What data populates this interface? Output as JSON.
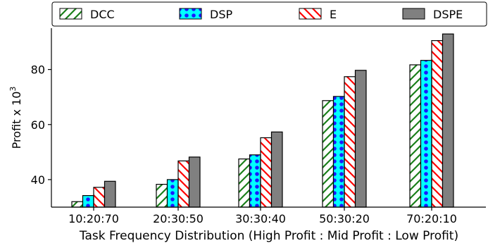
{
  "chart_data": {
    "type": "bar",
    "title": "",
    "xlabel": "Task Frequency Distribution (High Profit : Mid Profit : Low Profit)",
    "ylabel": "Profit x 10",
    "ylabel_superscript": "3",
    "categories": [
      "10:20:70",
      "20:30:50",
      "30:30:40",
      "50:30:20",
      "70:20:10"
    ],
    "ylim": [
      30,
      95
    ],
    "yticks": [
      "40",
      "60",
      "80"
    ],
    "legend_position": "top",
    "grid": false,
    "series": [
      {
        "name": "DCC",
        "values": [
          32.0,
          38.3,
          47.5,
          68.7,
          81.7
        ],
        "color": "#ffffff",
        "hatch": "diagonal",
        "hatch_color": "#1a7f1a"
      },
      {
        "name": "DSP",
        "values": [
          34.2,
          40.0,
          49.0,
          70.2,
          83.3
        ],
        "color": "#00ffff",
        "hatch": "dots",
        "hatch_color": "#1a1aff"
      },
      {
        "name": "E",
        "values": [
          37.2,
          46.8,
          55.2,
          77.4,
          90.5
        ],
        "color": "#ffffff",
        "hatch": "backdiagonal",
        "hatch_color": "#ff0000"
      },
      {
        "name": "DSPE",
        "values": [
          39.4,
          48.2,
          57.3,
          79.7,
          92.9
        ],
        "color": "#808080",
        "hatch": "none",
        "hatch_color": "#808080"
      }
    ]
  }
}
